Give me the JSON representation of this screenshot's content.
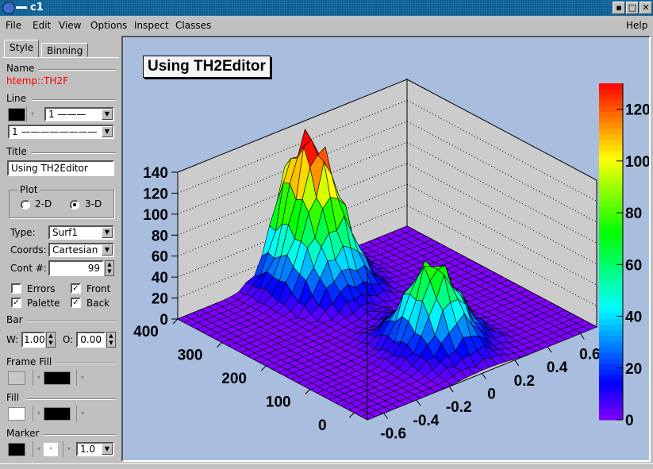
{
  "window": {
    "title": "c1",
    "buttons": [
      "minimize",
      "maximize",
      "close"
    ]
  },
  "menu": [
    "File",
    "Edit",
    "View",
    "Options",
    "Inspect",
    "Classes"
  ],
  "menu_help": "Help",
  "editor": {
    "tabs": [
      "Style",
      "Binning"
    ],
    "name_label": "Name",
    "name_value": "htemp::TH2F",
    "line_label": "Line",
    "line_width": "1",
    "line_style": "1",
    "title_label": "Title",
    "title_value": "Using TH2Editor",
    "plot_label": "Plot",
    "plot_2d": "2-D",
    "plot_3d": "3-D",
    "plot_selected": "3-D",
    "type_label": "Type:",
    "type_value": "Surf1",
    "coords_label": "Coords:",
    "coords_value": "Cartesian",
    "cont_label": "Cont #:",
    "cont_value": "99",
    "errors": "Errors",
    "errors_checked": false,
    "front": "Front",
    "front_checked": true,
    "palette": "Palette",
    "palette_checked": true,
    "back": "Back",
    "back_checked": true,
    "bar_label": "Bar",
    "w_label": "W:",
    "w_value": "1.00",
    "o_label": "O:",
    "o_value": "0.00",
    "frame_fill_label": "Frame Fill",
    "fill_label": "Fill",
    "marker_label": "Marker",
    "marker_style": "·",
    "marker_size": "1.0",
    "colors": {
      "line": "#000000",
      "frame_fill": "#c0c0c0",
      "frame_pattern": "#000000",
      "fill": "#ffffff",
      "fill_pattern": "#000000",
      "marker": "#000000",
      "name_text": "#ff0000"
    }
  },
  "chart_data": {
    "type": "surface",
    "title": "Using TH2Editor",
    "draw_option": "Surf1",
    "x_ticks": [
      "-0.6",
      "-0.4",
      "-0.2",
      "0",
      "0.2",
      "0.4",
      "0.6"
    ],
    "y_ticks": [
      "0",
      "100",
      "200",
      "300",
      "400"
    ],
    "z_ticks": [
      "0",
      "20",
      "40",
      "60",
      "80",
      "100",
      "120",
      "140"
    ],
    "xlim": [
      -0.7,
      0.7
    ],
    "ylim": [
      -30,
      400
    ],
    "zlim": [
      0,
      140
    ],
    "palette_ticks": [
      "0",
      "20",
      "40",
      "60",
      "80",
      "100",
      "120"
    ],
    "palette_range": [
      0,
      130
    ],
    "grid": true,
    "peaks": [
      {
        "x": 0.0,
        "y": 360,
        "z": 130,
        "sx": 0.12,
        "sy": 55
      },
      {
        "x": 0.02,
        "y": 85,
        "z": 80,
        "sx": 0.12,
        "sy": 45
      }
    ],
    "background": "#a9bddf",
    "frame_color": "#cccccc"
  }
}
